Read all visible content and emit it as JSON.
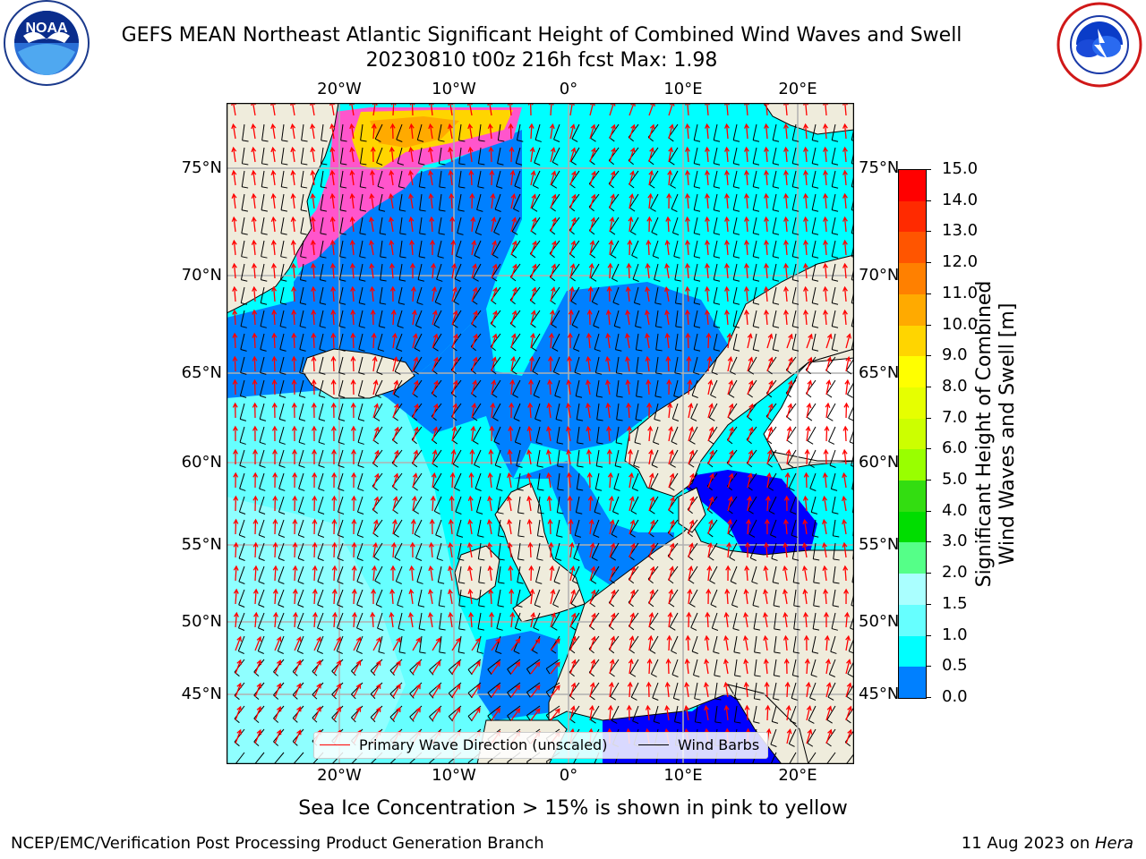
{
  "title": {
    "line1": "GEFS MEAN Northeast Atlantic Significant Height of Combined Wind Waves and Swell",
    "line2": "20230810 t00z 216h fcst   Max: 1.98"
  },
  "logos": {
    "noaa_text": "NOAA",
    "noaa_ring": "NATIONAL OCEANIC AND ATMOSPHERIC ADMINISTRATION · U.S. DEPARTMENT OF COMMERCE",
    "nws_ring": "NATIONAL WEATHER SERVICE"
  },
  "map": {
    "lon_ticks": [
      "20°W",
      "10°W",
      "0°",
      "10°E",
      "20°E"
    ],
    "lat_ticks": [
      "75°N",
      "70°N",
      "65°N",
      "60°N",
      "55°N",
      "50°N",
      "45°N"
    ],
    "lon_values": [
      -20,
      -10,
      0,
      10,
      20
    ],
    "lat_values": [
      75,
      70,
      65,
      60,
      55,
      50,
      45
    ],
    "extent": {
      "lon": [
        -30,
        25
      ],
      "lat": [
        41,
        78
      ]
    },
    "colors": {
      "land": "#efecdc",
      "ocean_0": "#0000ff",
      "ocean_05": "#0080ff",
      "ocean_10": "#00ffff",
      "ocean_15": "#66ffff",
      "ocean_20": "#aaffff",
      "grid": "#b0b0b0"
    }
  },
  "legend": {
    "wave_label": "Primary Wave Direction (unscaled)",
    "wind_label": "Wind Barbs",
    "wave_color": "#ff0000",
    "wind_color": "#000000"
  },
  "colorbar": {
    "title_line1": "Significant Height of Combined",
    "title_line2": "Wind Waves and Swell [m]",
    "ticks": [
      "15.0",
      "14.0",
      "13.0",
      "12.0",
      "11.0",
      "10.0",
      "9.0",
      "8.0",
      "7.0",
      "6.0",
      "5.0",
      "4.0",
      "3.0",
      "2.0",
      "1.5",
      "1.0",
      "0.5",
      "0.0"
    ],
    "colors": [
      "#ff0000",
      "#ff2a00",
      "#ff5500",
      "#ff8000",
      "#ffaa00",
      "#ffd500",
      "#ffff00",
      "#e6ff00",
      "#ccff00",
      "#99ff00",
      "#33dd11",
      "#00dd00",
      "#55ff88",
      "#aaffff",
      "#66ffff",
      "#00ffff",
      "#0080ff",
      "#0000ff"
    ]
  },
  "subtitle": "Sea Ice Concentration > 15% is shown in pink to yellow",
  "footer": {
    "left": "NCEP/EMC/Verification Post Processing Product Generation Branch",
    "right_date": "11 Aug 2023 on ",
    "right_host": "Hera"
  }
}
